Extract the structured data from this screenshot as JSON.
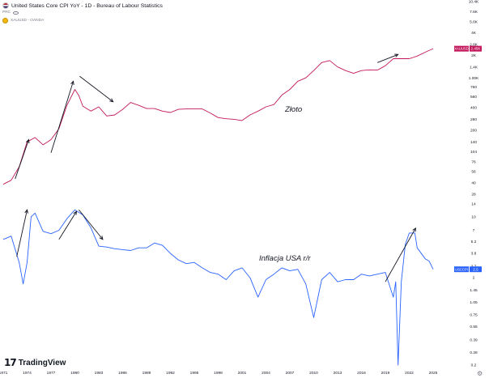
{
  "header": {
    "title": "United States Core CPI YoY - 1D - Bureau of Labour Statistics",
    "unit_label": "PRC",
    "symbol": "XAUUSD - OANDA"
  },
  "branding": {
    "name": "TradingView",
    "logo_glyph": "17"
  },
  "icons": {
    "settings": "⚙",
    "settings_name": "settings-icon"
  },
  "colors": {
    "gold": "#c2185b",
    "cpi": "#2962ff",
    "arrow": "#131722",
    "axis": "#131722"
  },
  "chart_data": [
    {
      "type": "line",
      "scale": "log",
      "title": "XAUUSD - OANDA",
      "annotation": "Złoto",
      "series_badge": "XAUUSD",
      "last_value_label": "2.45K",
      "last_value": 2450,
      "y_ticks": [
        {
          "value": 10400,
          "label": "10.4K"
        },
        {
          "value": 7600,
          "label": "7.6K"
        },
        {
          "value": 5600,
          "label": "5.6K"
        },
        {
          "value": 4000,
          "label": "4K"
        },
        {
          "value": 2800,
          "label": "2.8K"
        },
        {
          "value": 2000,
          "label": "2K"
        },
        {
          "value": 1400,
          "label": "1.4K"
        },
        {
          "value": 1000,
          "label": "1.00K"
        },
        {
          "value": 760,
          "label": "760"
        },
        {
          "value": 560,
          "label": "560"
        },
        {
          "value": 400,
          "label": "400"
        },
        {
          "value": 280,
          "label": "280"
        },
        {
          "value": 200,
          "label": "200"
        },
        {
          "value": 140,
          "label": "140"
        },
        {
          "value": 104,
          "label": "104"
        },
        {
          "value": 76,
          "label": "76"
        },
        {
          "value": 56,
          "label": "56"
        },
        {
          "value": 40,
          "label": "40"
        },
        {
          "value": 28,
          "label": "28"
        }
      ],
      "x": [
        1971,
        1972,
        1973,
        1974,
        1975,
        1976,
        1977,
        1978,
        1979,
        1980,
        1980.5,
        1981,
        1982,
        1983,
        1984,
        1985,
        1986,
        1987,
        1988,
        1989,
        1990,
        1991,
        1992,
        1993,
        1994,
        1995,
        1996,
        1997,
        1998,
        1999,
        2000,
        2001,
        2002,
        2003,
        2004,
        2005,
        2006,
        2007,
        2008,
        2009,
        2010,
        2011,
        2012,
        2013,
        2014,
        2015,
        2016,
        2017,
        2018,
        2019,
        2020,
        2021,
        2022,
        2023,
        2024,
        2025
      ],
      "values": [
        38,
        43,
        65,
        140,
        160,
        128,
        150,
        210,
        430,
        700,
        580,
        420,
        360,
        410,
        310,
        320,
        380,
        470,
        430,
        390,
        390,
        360,
        345,
        380,
        385,
        385,
        385,
        340,
        295,
        285,
        280,
        270,
        320,
        360,
        410,
        440,
        590,
        700,
        900,
        1000,
        1250,
        1600,
        1700,
        1400,
        1250,
        1150,
        1250,
        1280,
        1270,
        1450,
        1800,
        1800,
        1800,
        1950,
        2200,
        2450
      ]
    },
    {
      "type": "line",
      "scale": "log",
      "title": "United States Core CPI YoY",
      "annotation": "Inflacja USA r/r",
      "series_badge": "USCCPI",
      "last_value_label": "2.5",
      "last_value": 2.5,
      "y_ticks": [
        {
          "value": 14,
          "label": "14"
        },
        {
          "value": 10,
          "label": "10"
        },
        {
          "value": 7,
          "label": "7"
        },
        {
          "value": 5.2,
          "label": "5.2"
        },
        {
          "value": 3.8,
          "label": "3.8"
        },
        {
          "value": 2.7,
          "label": "2.7"
        },
        {
          "value": 2,
          "label": "2"
        },
        {
          "value": 1.45,
          "label": "1.45"
        },
        {
          "value": 1.05,
          "label": "1.05"
        },
        {
          "value": 0.75,
          "label": "0.75"
        },
        {
          "value": 0.55,
          "label": "0.55"
        },
        {
          "value": 0.39,
          "label": "0.39"
        },
        {
          "value": 0.28,
          "label": "0.28"
        },
        {
          "value": 0.2,
          "label": "0.2"
        }
      ],
      "x": [
        1971,
        1972,
        1973,
        1973.5,
        1974,
        1974.5,
        1975,
        1976,
        1977,
        1978,
        1979,
        1980,
        1981,
        1982,
        1983,
        1984,
        1985,
        1986,
        1987,
        1988,
        1989,
        1990,
        1991,
        1992,
        1993,
        1994,
        1995,
        1996,
        1997,
        1998,
        1999,
        2000,
        2001,
        2002,
        2003,
        2004,
        2005,
        2006,
        2007,
        2008,
        2009,
        2010,
        2011,
        2012,
        2013,
        2014,
        2015,
        2016,
        2017,
        2018,
        2019,
        2020,
        2020.3,
        2020.6,
        2021,
        2021.5,
        2022,
        2022.7,
        2023,
        2024,
        2024.5,
        2025
      ],
      "values": [
        5.5,
        6.0,
        3.0,
        1.7,
        3.0,
        10.0,
        11.0,
        6.8,
        6.4,
        7.0,
        9.5,
        12.0,
        10.5,
        7.5,
        4.6,
        4.5,
        4.3,
        4.2,
        4.1,
        4.4,
        4.4,
        5.0,
        4.7,
        3.8,
        3.2,
        2.9,
        3.0,
        2.6,
        2.3,
        2.2,
        1.9,
        2.4,
        2.6,
        2.0,
        1.2,
        1.9,
        2.2,
        2.6,
        2.4,
        2.5,
        1.7,
        0.7,
        1.9,
        2.3,
        1.8,
        1.9,
        1.9,
        2.2,
        2.1,
        2.2,
        2.3,
        1.2,
        1.8,
        0.2,
        1.8,
        4.8,
        6.5,
        6.5,
        4.4,
        3.3,
        3.1,
        2.5
      ]
    }
  ],
  "x_axis": {
    "ticks": [
      {
        "value": 1971,
        "label": "1971"
      },
      {
        "value": 1974,
        "label": "1974"
      },
      {
        "value": 1977,
        "label": "1977"
      },
      {
        "value": 1980,
        "label": "1980"
      },
      {
        "value": 1983,
        "label": "1983"
      },
      {
        "value": 1986,
        "label": "1986"
      },
      {
        "value": 1989,
        "label": "1989"
      },
      {
        "value": 1992,
        "label": "1992"
      },
      {
        "value": 1995,
        "label": "1995"
      },
      {
        "value": 1998,
        "label": "1998"
      },
      {
        "value": 2001,
        "label": "2001"
      },
      {
        "value": 2004,
        "label": "2004"
      },
      {
        "value": 2007,
        "label": "2007"
      },
      {
        "value": 2010,
        "label": "2010"
      },
      {
        "value": 2013,
        "label": "2013"
      },
      {
        "value": 2016,
        "label": "2016"
      },
      {
        "value": 2019,
        "label": "2019"
      },
      {
        "value": 2022,
        "label": "2022"
      },
      {
        "value": 2025,
        "label": "2025"
      }
    ]
  },
  "arrows": [
    {
      "panel": 0,
      "from": [
        1972.5,
        45
      ],
      "to": [
        1974.2,
        150
      ]
    },
    {
      "panel": 0,
      "from": [
        1977.0,
        100
      ],
      "to": [
        1979.8,
        900
      ]
    },
    {
      "panel": 0,
      "from": [
        1980.6,
        1050
      ],
      "to": [
        1984.8,
        480
      ]
    },
    {
      "panel": 0,
      "from": [
        2018.0,
        1600
      ],
      "to": [
        2020.6,
        2050
      ]
    },
    {
      "panel": 1,
      "from": [
        1972.7,
        3.5
      ],
      "to": [
        1974.0,
        12.0
      ]
    },
    {
      "panel": 1,
      "from": [
        1978.0,
        5.5
      ],
      "to": [
        1980.2,
        11.5
      ]
    },
    {
      "panel": 1,
      "from": [
        1980.5,
        12.0
      ],
      "to": [
        1983.5,
        5.5
      ]
    },
    {
      "panel": 1,
      "from": [
        2019.0,
        1.8
      ],
      "to": [
        2022.8,
        7.4
      ]
    }
  ]
}
